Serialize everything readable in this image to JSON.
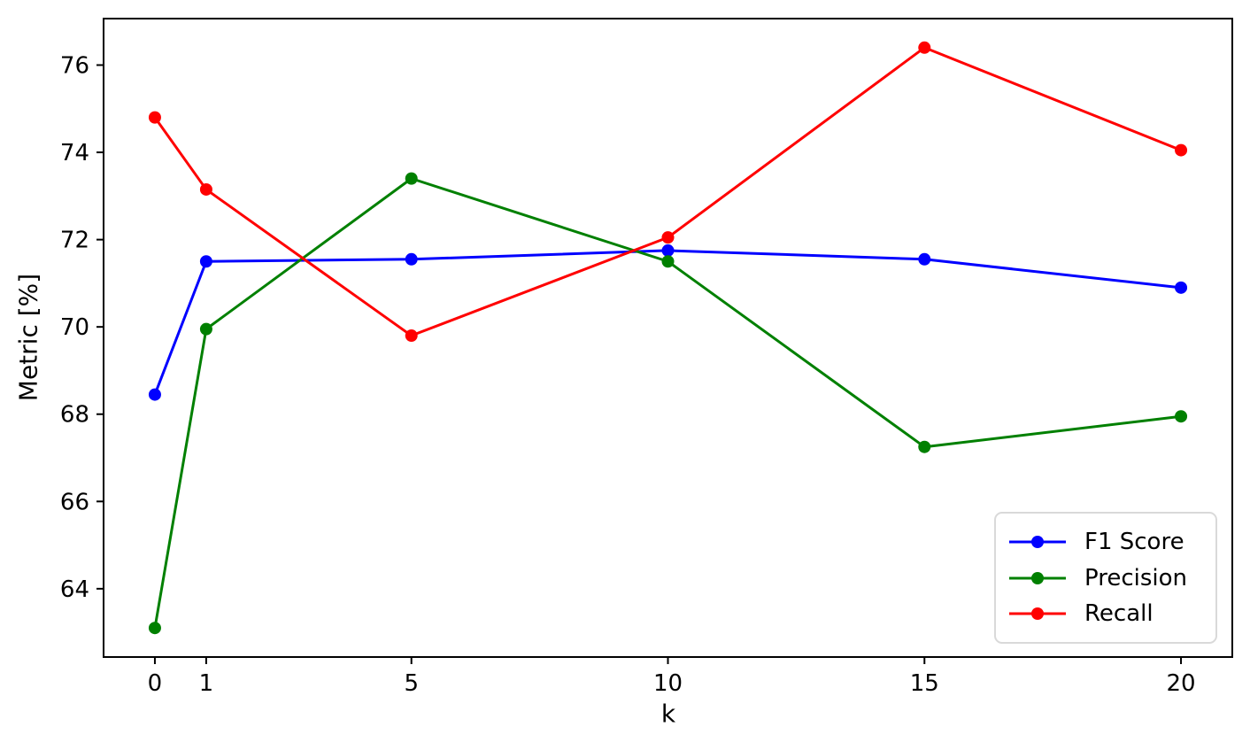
{
  "chart_data": {
    "type": "line",
    "title": "",
    "xlabel": "k",
    "ylabel": "Metric [%]",
    "x": [
      0,
      1,
      5,
      10,
      15,
      20
    ],
    "series": [
      {
        "name": "F1 Score",
        "color": "#0000ff",
        "values": [
          68.45,
          71.5,
          71.55,
          71.75,
          71.55,
          70.9
        ]
      },
      {
        "name": "Precision",
        "color": "#008000",
        "values": [
          63.1,
          69.95,
          73.4,
          71.5,
          67.25,
          67.95
        ]
      },
      {
        "name": "Recall",
        "color": "#ff0000",
        "values": [
          74.8,
          73.15,
          69.8,
          72.05,
          76.4,
          74.05
        ]
      }
    ],
    "xlim": [
      -1,
      21
    ],
    "ylim": [
      62.435,
      77.065
    ],
    "xticks": [
      0,
      1,
      5,
      10,
      15,
      20
    ],
    "yticks": [
      64,
      66,
      68,
      70,
      72,
      74,
      76
    ],
    "grid": false,
    "legend_position": "lower right",
    "marker": "circle",
    "axis_color": "#000000"
  }
}
